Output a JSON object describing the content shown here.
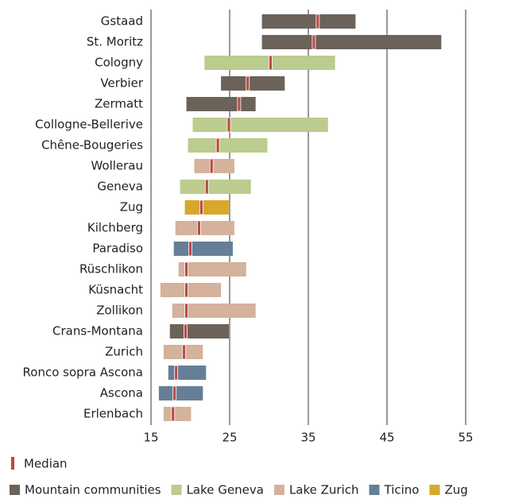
{
  "chart_data": {
    "type": "range",
    "categories": [
      "Gstaad",
      "St. Moritz",
      "Cologny",
      "Verbier",
      "Zermatt",
      "Collogne-Bellerive",
      "Chêne-Bougeries",
      "Wollerau",
      "Geneva",
      "Zug",
      "Kilchberg",
      "Paradiso",
      "Rüschlikon",
      "Küsnacht",
      "Zollikon",
      "Crans-Montana",
      "Zurich",
      "Ronco sopra Ascona",
      "Ascona",
      "Erlenbach"
    ],
    "median_label": "Median",
    "median_color": "#b94a48",
    "series": [
      {
        "name": "Mountain communities",
        "color": "#6b625a",
        "low": [
          29.1,
          29.1,
          null,
          23.9,
          19.5,
          null,
          null,
          null,
          null,
          null,
          null,
          null,
          null,
          null,
          null,
          17.4,
          null,
          null,
          null,
          null
        ],
        "high": [
          41.0,
          51.9,
          null,
          32.0,
          28.3,
          null,
          null,
          null,
          null,
          null,
          null,
          null,
          null,
          null,
          null,
          24.9,
          null,
          null,
          null,
          null
        ],
        "median": [
          36.2,
          35.7,
          null,
          27.3,
          26.2,
          null,
          null,
          null,
          null,
          null,
          null,
          null,
          null,
          null,
          null,
          19.4,
          null,
          null,
          null,
          null
        ]
      },
      {
        "name": "Lake Geneva",
        "color": "#bccb8e",
        "low": [
          null,
          null,
          21.8,
          null,
          null,
          20.3,
          19.7,
          null,
          18.7,
          null,
          null,
          null,
          null,
          null,
          null,
          null,
          null,
          null,
          null,
          null
        ],
        "high": [
          null,
          null,
          38.4,
          null,
          null,
          37.5,
          29.8,
          null,
          27.7,
          null,
          null,
          null,
          null,
          null,
          null,
          null,
          null,
          null,
          null,
          null
        ],
        "median": [
          null,
          null,
          30.2,
          null,
          null,
          24.9,
          23.5,
          null,
          22.1,
          null,
          null,
          null,
          null,
          null,
          null,
          null,
          null,
          null,
          null,
          null
        ]
      },
      {
        "name": "Lake Zurich",
        "color": "#d4b29c",
        "low": [
          null,
          null,
          null,
          null,
          null,
          null,
          null,
          20.5,
          null,
          null,
          18.1,
          null,
          18.5,
          16.2,
          17.7,
          null,
          16.6,
          null,
          null,
          16.6
        ],
        "high": [
          null,
          null,
          null,
          null,
          null,
          null,
          null,
          25.6,
          null,
          null,
          25.6,
          null,
          27.1,
          23.9,
          28.3,
          null,
          21.6,
          null,
          null,
          20.1
        ],
        "median": [
          null,
          null,
          null,
          null,
          null,
          null,
          null,
          22.7,
          null,
          null,
          21.1,
          null,
          19.5,
          19.5,
          19.5,
          null,
          19.2,
          null,
          null,
          17.8
        ]
      },
      {
        "name": "Ticino",
        "color": "#667f96",
        "low": [
          null,
          null,
          null,
          null,
          null,
          null,
          null,
          null,
          null,
          null,
          null,
          17.9,
          null,
          null,
          null,
          null,
          null,
          17.2,
          16.0,
          null
        ],
        "high": [
          null,
          null,
          null,
          null,
          null,
          null,
          null,
          null,
          null,
          null,
          null,
          25.4,
          null,
          null,
          null,
          null,
          null,
          22.0,
          21.6,
          null
        ],
        "median": [
          null,
          null,
          null,
          null,
          null,
          null,
          null,
          null,
          null,
          null,
          null,
          20.0,
          null,
          null,
          null,
          null,
          null,
          18.2,
          18.0,
          null
        ]
      },
      {
        "name": "Zug",
        "color": "#d8a82c",
        "low": [
          null,
          null,
          null,
          null,
          null,
          null,
          null,
          null,
          null,
          19.3,
          null,
          null,
          null,
          null,
          null,
          null,
          null,
          null,
          null,
          null
        ],
        "high": [
          null,
          null,
          null,
          null,
          null,
          null,
          null,
          null,
          null,
          25.0,
          null,
          null,
          null,
          null,
          null,
          null,
          null,
          null,
          null,
          null
        ],
        "median": [
          null,
          null,
          null,
          null,
          null,
          null,
          null,
          null,
          null,
          21.4,
          null,
          null,
          null,
          null,
          null,
          null,
          null,
          null,
          null,
          null
        ]
      }
    ],
    "xlim": [
      15,
      55
    ],
    "xticks": [
      15,
      25,
      35,
      45,
      55
    ],
    "grid": true
  }
}
